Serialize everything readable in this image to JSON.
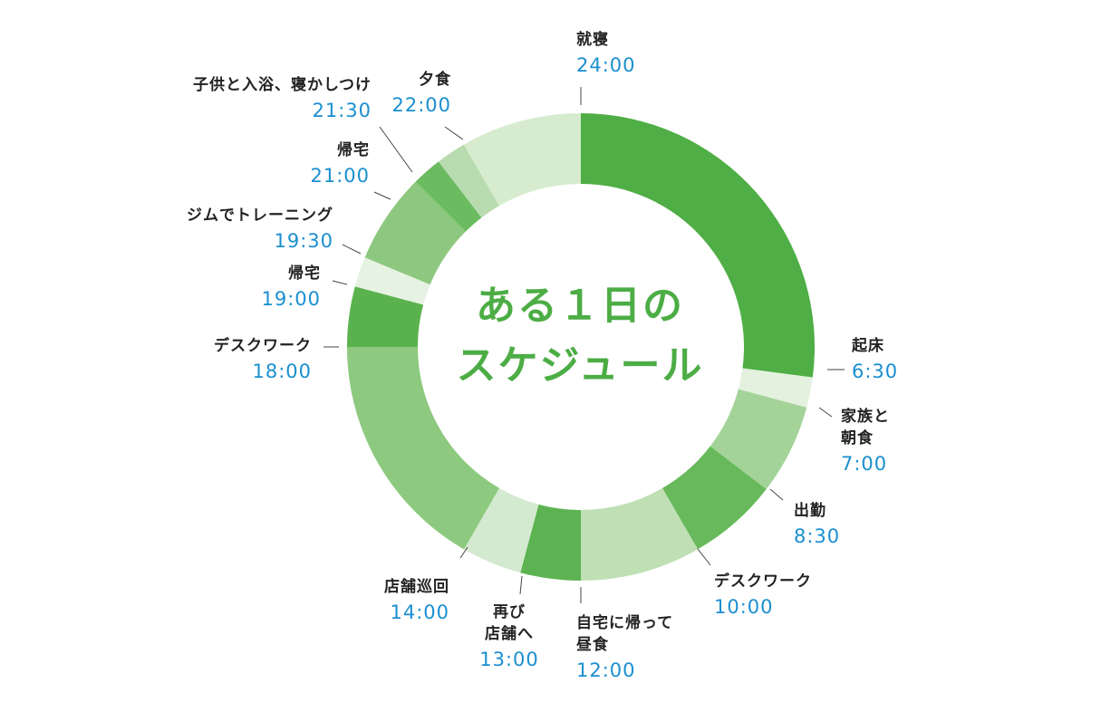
{
  "chart_data": {
    "type": "pie",
    "title_line1": "ある１日の",
    "title_line2": "スケジュール",
    "slices": [
      {
        "activity": "就寝",
        "start": "24:00",
        "hours": 6.5,
        "color": "#4fae45"
      },
      {
        "activity": "起床",
        "start": "6:30",
        "hours": 0.5,
        "color": "#e4f1de"
      },
      {
        "activity": "家族と朝食",
        "start": "7:00",
        "hours": 1.5,
        "color": "#a3d398"
      },
      {
        "activity": "出勤",
        "start": "8:30",
        "hours": 1.5,
        "color": "#67b95b"
      },
      {
        "activity": "デスクワーク",
        "start": "10:00",
        "hours": 2.0,
        "color": "#bfdfb4"
      },
      {
        "activity": "自宅に帰って昼食",
        "start": "12:00",
        "hours": 1.0,
        "color": "#5db351"
      },
      {
        "activity": "再び店舗へ",
        "start": "13:00",
        "hours": 1.0,
        "color": "#d4ead0"
      },
      {
        "activity": "店舗巡回",
        "start": "14:00",
        "hours": 4.0,
        "color": "#8dc97f"
      },
      {
        "activity": "デスクワーク",
        "start": "18:00",
        "hours": 1.0,
        "color": "#5ab24e"
      },
      {
        "activity": "帰宅",
        "start": "19:00",
        "hours": 0.5,
        "color": "#e6f2e2"
      },
      {
        "activity": "ジムでトレーニング",
        "start": "19:30",
        "hours": 1.5,
        "color": "#8ec880"
      },
      {
        "activity": "帰宅",
        "start": "21:00",
        "hours": 0.5,
        "color": "#6bbb60"
      },
      {
        "activity": "子供と入浴、寝かしつけ",
        "start": "21:30",
        "hours": 0.5,
        "color": "#b8dcaf"
      },
      {
        "activity": "夕食",
        "start": "22:00",
        "hours": 2.0,
        "color": "#d7eccf"
      }
    ]
  },
  "labels": [
    {
      "line1": "就寝",
      "line2": "",
      "time": "24:00"
    },
    {
      "line1": "起床",
      "line2": "",
      "time": "6:30"
    },
    {
      "line1": "家族と",
      "line2": "朝食",
      "time": "7:00"
    },
    {
      "line1": "出勤",
      "line2": "",
      "time": "8:30"
    },
    {
      "line1": "デスクワーク",
      "line2": "",
      "time": "10:00"
    },
    {
      "line1": "自宅に帰って",
      "line2": "昼食",
      "time": "12:00"
    },
    {
      "line1": "再び",
      "line2": "店舗へ",
      "time": "13:00"
    },
    {
      "line1": "店舗巡回",
      "line2": "",
      "time": "14:00"
    },
    {
      "line1": "デスクワーク",
      "line2": "",
      "time": "18:00"
    },
    {
      "line1": "帰宅",
      "line2": "",
      "time": "19:00"
    },
    {
      "line1": "ジムでトレーニング",
      "line2": "",
      "time": "19:30"
    },
    {
      "line1": "帰宅",
      "line2": "",
      "time": "21:00"
    },
    {
      "line1": "子供と入浴、寝かしつけ",
      "line2": "",
      "time": "21:30"
    },
    {
      "line1": "夕食",
      "line2": "",
      "time": "22:00"
    }
  ]
}
